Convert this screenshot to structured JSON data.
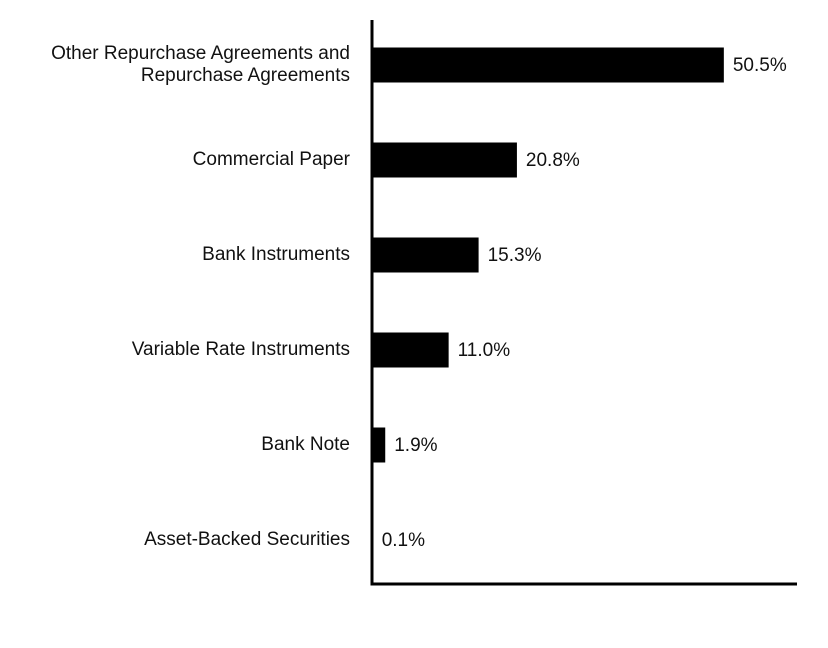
{
  "chart_data": {
    "type": "barh",
    "categories": [
      "Other Repurchase Agreements and Repurchase Agreements",
      "Commercial Paper",
      "Bank Instruments",
      "Variable Rate Instruments",
      "Bank Note",
      "Asset-Backed Securities"
    ],
    "values": [
      50.5,
      20.8,
      15.3,
      11.0,
      1.9,
      0.1
    ],
    "value_labels": [
      "50.5%",
      "20.8%",
      "15.3%",
      "11.0%",
      "1.9%",
      "0.1%"
    ],
    "color": "#000000",
    "xlim": [
      0,
      61
    ]
  }
}
